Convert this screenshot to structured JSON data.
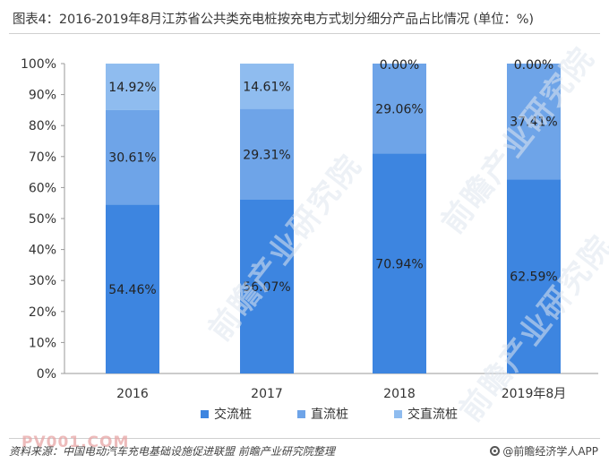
{
  "title": "图表4：2016-2019年8月江苏省公共类充电桩按充电方式划分细分产品占比情况 (单位：%)",
  "source": "资料来源：中国电动汽车充电基础设施促进联盟 前瞻产业研究院整理",
  "brand": "@前瞻经济学人APP",
  "watermark_text": "前瞻产业研究院",
  "site_watermark": "PV001.COM",
  "colors": {
    "series": [
      "#3d85e0",
      "#6ea4e8",
      "#8fbcef"
    ],
    "axis": "#999999",
    "grid": "#e6e6e6"
  },
  "chart_data": {
    "type": "bar",
    "stacked": true,
    "categories": [
      "2016",
      "2017",
      "2018",
      "2019年8月"
    ],
    "series": [
      {
        "name": "交流桩",
        "values": [
          54.46,
          56.07,
          70.94,
          62.59
        ]
      },
      {
        "name": "直流桩",
        "values": [
          30.61,
          29.31,
          29.06,
          37.41
        ]
      },
      {
        "name": "交直流桩",
        "values": [
          14.92,
          14.61,
          0.0,
          0.0
        ]
      }
    ],
    "labels": [
      [
        "54.46%",
        "56.07%",
        "70.94%",
        "62.59%"
      ],
      [
        "30.61%",
        "29.31%",
        "29.06%",
        "37.41%"
      ],
      [
        "14.92%",
        "14.61%",
        "0.00%",
        "0.00%"
      ]
    ],
    "ylim": [
      0,
      100
    ],
    "yticks": [
      "0%",
      "10%",
      "20%",
      "30%",
      "40%",
      "50%",
      "60%",
      "70%",
      "80%",
      "90%",
      "100%"
    ],
    "legend_position": "bottom",
    "grid": false
  }
}
